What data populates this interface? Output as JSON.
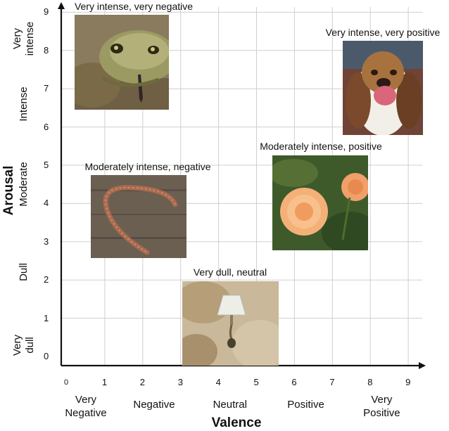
{
  "chart_data": {
    "type": "scatter",
    "xlabel": "Valence",
    "ylabel": "Arousal",
    "xlim": [
      0,
      9
    ],
    "ylim": [
      0,
      9
    ],
    "x_ticks": [
      "0",
      "1",
      "2",
      "3",
      "4",
      "5",
      "6",
      "7",
      "8",
      "9"
    ],
    "y_ticks": [
      "0",
      "1",
      "2",
      "3",
      "4",
      "5",
      "6",
      "7",
      "8",
      "9"
    ],
    "x_categories": [
      {
        "label": "Very\nNegative",
        "x": 0.5
      },
      {
        "label": "Negative",
        "x": 2.3
      },
      {
        "label": "Neutral",
        "x": 4.3
      },
      {
        "label": "Positive",
        "x": 6.3
      },
      {
        "label": "Very\nPositive",
        "x": 8.3
      }
    ],
    "y_categories": [
      {
        "label": "Very\nintense",
        "y": 8.3
      },
      {
        "label": "Intense",
        "y": 6.6
      },
      {
        "label": "Moderate",
        "y": 4.5
      },
      {
        "label": "Dull",
        "y": 2.2
      },
      {
        "label": "Very\ndull",
        "y": 0.3
      }
    ],
    "points": [
      {
        "label": "Very intense, very negative",
        "image": "snake-photo",
        "x": 1.5,
        "y": 7.8
      },
      {
        "label": "Very intense, very positive",
        "image": "dog-photo",
        "x": 8.2,
        "y": 7.1
      },
      {
        "label": "Moderately intense, negative",
        "image": "worm-photo",
        "x": 1.9,
        "y": 3.8
      },
      {
        "label": "Moderately intense, positive",
        "image": "roses-photo",
        "x": 7.0,
        "y": 4.1
      },
      {
        "label": "Very dull, neutral",
        "image": "lamp-photo",
        "x": 4.0,
        "y": 1.1
      }
    ]
  },
  "colors": {
    "axis": "#111111",
    "grid": "#cfcfcf"
  }
}
